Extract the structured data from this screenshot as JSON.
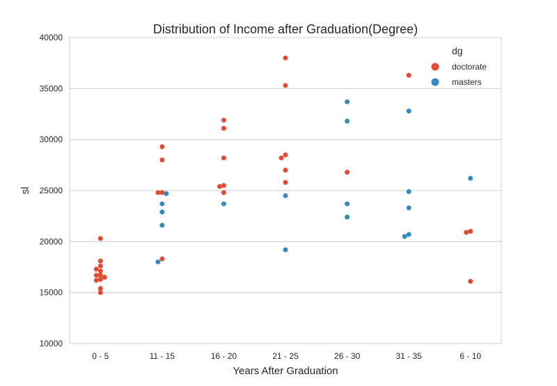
{
  "chart_data": {
    "type": "scatter",
    "title": "Distribution of Income after Graduation(Degree)",
    "xlabel": "Years After Graduation",
    "ylabel": "sl",
    "categories": [
      "0 - 5",
      "11 - 15",
      "16 - 20",
      "21 - 25",
      "26 - 30",
      "31 - 35",
      "6 - 10"
    ],
    "ylim": [
      10000,
      40000
    ],
    "yticks": [
      "10000",
      "15000",
      "20000",
      "25000",
      "30000",
      "35000",
      "40000"
    ],
    "grid": true,
    "legend": {
      "title": "dg",
      "position": "top-right",
      "entries": [
        {
          "label": "doctorate",
          "color": "#e24a33"
        },
        {
          "label": "masters",
          "color": "#348abd"
        }
      ]
    },
    "series": [
      {
        "name": "doctorate",
        "color": "#e24a33",
        "points": [
          [
            "0 - 5",
            20300
          ],
          [
            "0 - 5",
            18100
          ],
          [
            "0 - 5",
            17600
          ],
          [
            "0 - 5",
            17300
          ],
          [
            "0 - 5",
            17100
          ],
          [
            "0 - 5",
            16700
          ],
          [
            "0 - 5",
            16700
          ],
          [
            "0 - 5",
            16500
          ],
          [
            "0 - 5",
            16300
          ],
          [
            "0 - 5",
            16200
          ],
          [
            "0 - 5",
            15400
          ],
          [
            "0 - 5",
            15000
          ],
          [
            "11 - 15",
            29300
          ],
          [
            "11 - 15",
            28000
          ],
          [
            "11 - 15",
            24800
          ],
          [
            "11 - 15",
            24800
          ],
          [
            "11 - 15",
            18300
          ],
          [
            "16 - 20",
            31900
          ],
          [
            "16 - 20",
            31100
          ],
          [
            "16 - 20",
            28200
          ],
          [
            "16 - 20",
            25500
          ],
          [
            "16 - 20",
            25400
          ],
          [
            "16 - 20",
            24800
          ],
          [
            "21 - 25",
            38000
          ],
          [
            "21 - 25",
            35300
          ],
          [
            "21 - 25",
            28500
          ],
          [
            "21 - 25",
            28200
          ],
          [
            "21 - 25",
            27000
          ],
          [
            "21 - 25",
            25800
          ],
          [
            "26 - 30",
            26800
          ],
          [
            "31 - 35",
            36300
          ],
          [
            "6 - 10",
            21000
          ],
          [
            "6 - 10",
            20900
          ],
          [
            "6 - 10",
            16100
          ]
        ]
      },
      {
        "name": "masters",
        "color": "#348abd",
        "points": [
          [
            "11 - 15",
            24700
          ],
          [
            "11 - 15",
            23700
          ],
          [
            "11 - 15",
            22900
          ],
          [
            "11 - 15",
            21600
          ],
          [
            "11 - 15",
            18000
          ],
          [
            "16 - 20",
            23700
          ],
          [
            "21 - 25",
            24500
          ],
          [
            "21 - 25",
            19200
          ],
          [
            "26 - 30",
            33700
          ],
          [
            "26 - 30",
            31800
          ],
          [
            "26 - 30",
            23700
          ],
          [
            "26 - 30",
            22400
          ],
          [
            "31 - 35",
            32800
          ],
          [
            "31 - 35",
            24900
          ],
          [
            "31 - 35",
            23300
          ],
          [
            "31 - 35",
            20700
          ],
          [
            "31 - 35",
            20500
          ],
          [
            "6 - 10",
            26200
          ]
        ]
      }
    ]
  }
}
